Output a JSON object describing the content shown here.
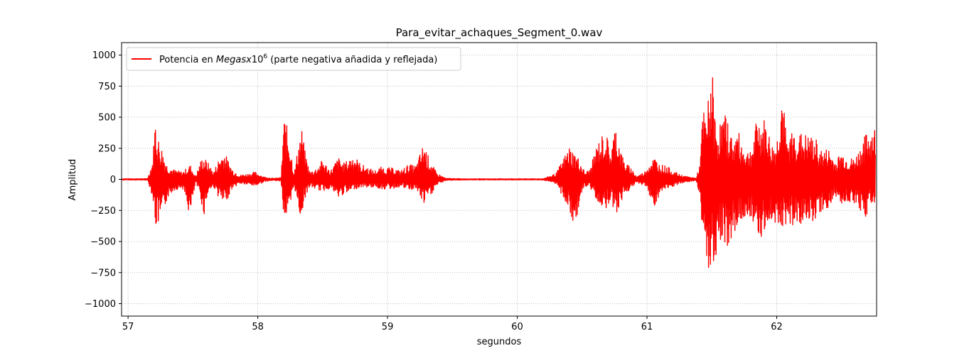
{
  "chart_data": {
    "type": "line",
    "title": "Para_evitar_achaques_Segment_0.wav",
    "xlabel": "segundos",
    "ylabel": "Amplitud",
    "xlim": [
      56.95,
      62.77
    ],
    "ylim": [
      -1100,
      1100
    ],
    "x_ticks": [
      57,
      58,
      59,
      60,
      61,
      62
    ],
    "y_ticks": [
      1000,
      750,
      500,
      250,
      0,
      -250,
      -500,
      -750,
      -1000
    ],
    "y_tick_labels": [
      "1000",
      "750",
      "500",
      "250",
      "0",
      "−250",
      "−500",
      "−750",
      "−1000"
    ],
    "grid": true,
    "legend_position": "top-left",
    "series": [
      {
        "name": "Potencia en Megasx10^6 (parte negativa añadida y reflejada)",
        "color": "#ff0000",
        "envelope": {
          "x": [
            56.95,
            57.15,
            57.19,
            57.21,
            57.23,
            57.27,
            57.3,
            57.35,
            57.42,
            57.48,
            57.52,
            57.56,
            57.58,
            57.62,
            57.66,
            57.7,
            57.74,
            57.8,
            57.86,
            57.92,
            57.98,
            58.05,
            58.12,
            58.18,
            58.2,
            58.22,
            58.25,
            58.28,
            58.32,
            58.34,
            58.36,
            58.4,
            58.45,
            58.5,
            58.56,
            58.62,
            58.66,
            58.7,
            58.74,
            58.78,
            58.82,
            58.86,
            58.9,
            58.95,
            59.0,
            59.05,
            59.1,
            59.16,
            59.22,
            59.28,
            59.31,
            59.34,
            59.38,
            59.45,
            59.6,
            59.8,
            60.0,
            60.2,
            60.3,
            60.36,
            60.4,
            60.44,
            60.48,
            60.52,
            60.56,
            60.62,
            60.68,
            60.72,
            60.76,
            60.8,
            60.82,
            60.85,
            60.88,
            60.92,
            60.98,
            61.02,
            61.06,
            61.1,
            61.15,
            61.2,
            61.25,
            61.3,
            61.38,
            61.41,
            61.43,
            61.46,
            61.48,
            61.5,
            61.52,
            61.54,
            61.57,
            61.6,
            61.63,
            61.66,
            61.7,
            61.74,
            61.78,
            61.82,
            61.85,
            61.88,
            61.9,
            61.92,
            61.96,
            62.0,
            62.04,
            62.08,
            62.1,
            62.13,
            62.16,
            62.2,
            62.25,
            62.3,
            62.35,
            62.4,
            62.45,
            62.5,
            62.55,
            62.6,
            62.64,
            62.68,
            62.72,
            62.76
          ],
          "upper": [
            5,
            6,
            160,
            520,
            350,
            230,
            120,
            80,
            60,
            120,
            25,
            150,
            190,
            130,
            60,
            170,
            230,
            90,
            35,
            45,
            60,
            20,
            8,
            15,
            520,
            450,
            300,
            40,
            340,
            410,
            250,
            60,
            90,
            160,
            70,
            180,
            130,
            160,
            210,
            140,
            110,
            90,
            70,
            100,
            95,
            90,
            70,
            120,
            110,
            300,
            200,
            130,
            50,
            8,
            5,
            5,
            5,
            5,
            50,
            180,
            270,
            220,
            160,
            60,
            80,
            300,
            400,
            230,
            460,
            230,
            160,
            120,
            90,
            25,
            60,
            140,
            180,
            120,
            110,
            70,
            40,
            25,
            10,
            140,
            570,
            500,
            750,
            950,
            560,
            400,
            480,
            530,
            450,
            320,
            400,
            270,
            230,
            300,
            520,
            460,
            490,
            460,
            280,
            300,
            760,
            280,
            360,
            400,
            380,
            370,
            350,
            330,
            230,
            250,
            150,
            220,
            170,
            170,
            250,
            350,
            420,
            420
          ],
          "lower": [
            -5,
            -6,
            -140,
            -390,
            -380,
            -320,
            -160,
            -90,
            -70,
            -320,
            -25,
            -140,
            -320,
            -100,
            -60,
            -150,
            -220,
            -80,
            -35,
            -45,
            -55,
            -20,
            -8,
            -15,
            -320,
            -310,
            -280,
            -40,
            -300,
            -290,
            -160,
            -60,
            -80,
            -100,
            -70,
            -160,
            -120,
            -120,
            -80,
            -70,
            -60,
            -70,
            -60,
            -80,
            -80,
            -75,
            -60,
            -90,
            -80,
            -210,
            -160,
            -120,
            -50,
            -8,
            -5,
            -5,
            -5,
            -5,
            -40,
            -160,
            -270,
            -430,
            -180,
            -60,
            -70,
            -180,
            -250,
            -160,
            -290,
            -200,
            -120,
            -100,
            -80,
            -25,
            -50,
            -130,
            -240,
            -110,
            -90,
            -60,
            -40,
            -25,
            -10,
            -160,
            -460,
            -690,
            -870,
            -760,
            -610,
            -680,
            -460,
            -510,
            -590,
            -420,
            -420,
            -330,
            -280,
            -340,
            -430,
            -460,
            -440,
            -480,
            -330,
            -360,
            -380,
            -360,
            -360,
            -390,
            -340,
            -370,
            -350,
            -330,
            -250,
            -240,
            -140,
            -200,
            -180,
            -190,
            -260,
            -320,
            -220,
            -180
          ]
        }
      }
    ]
  }
}
